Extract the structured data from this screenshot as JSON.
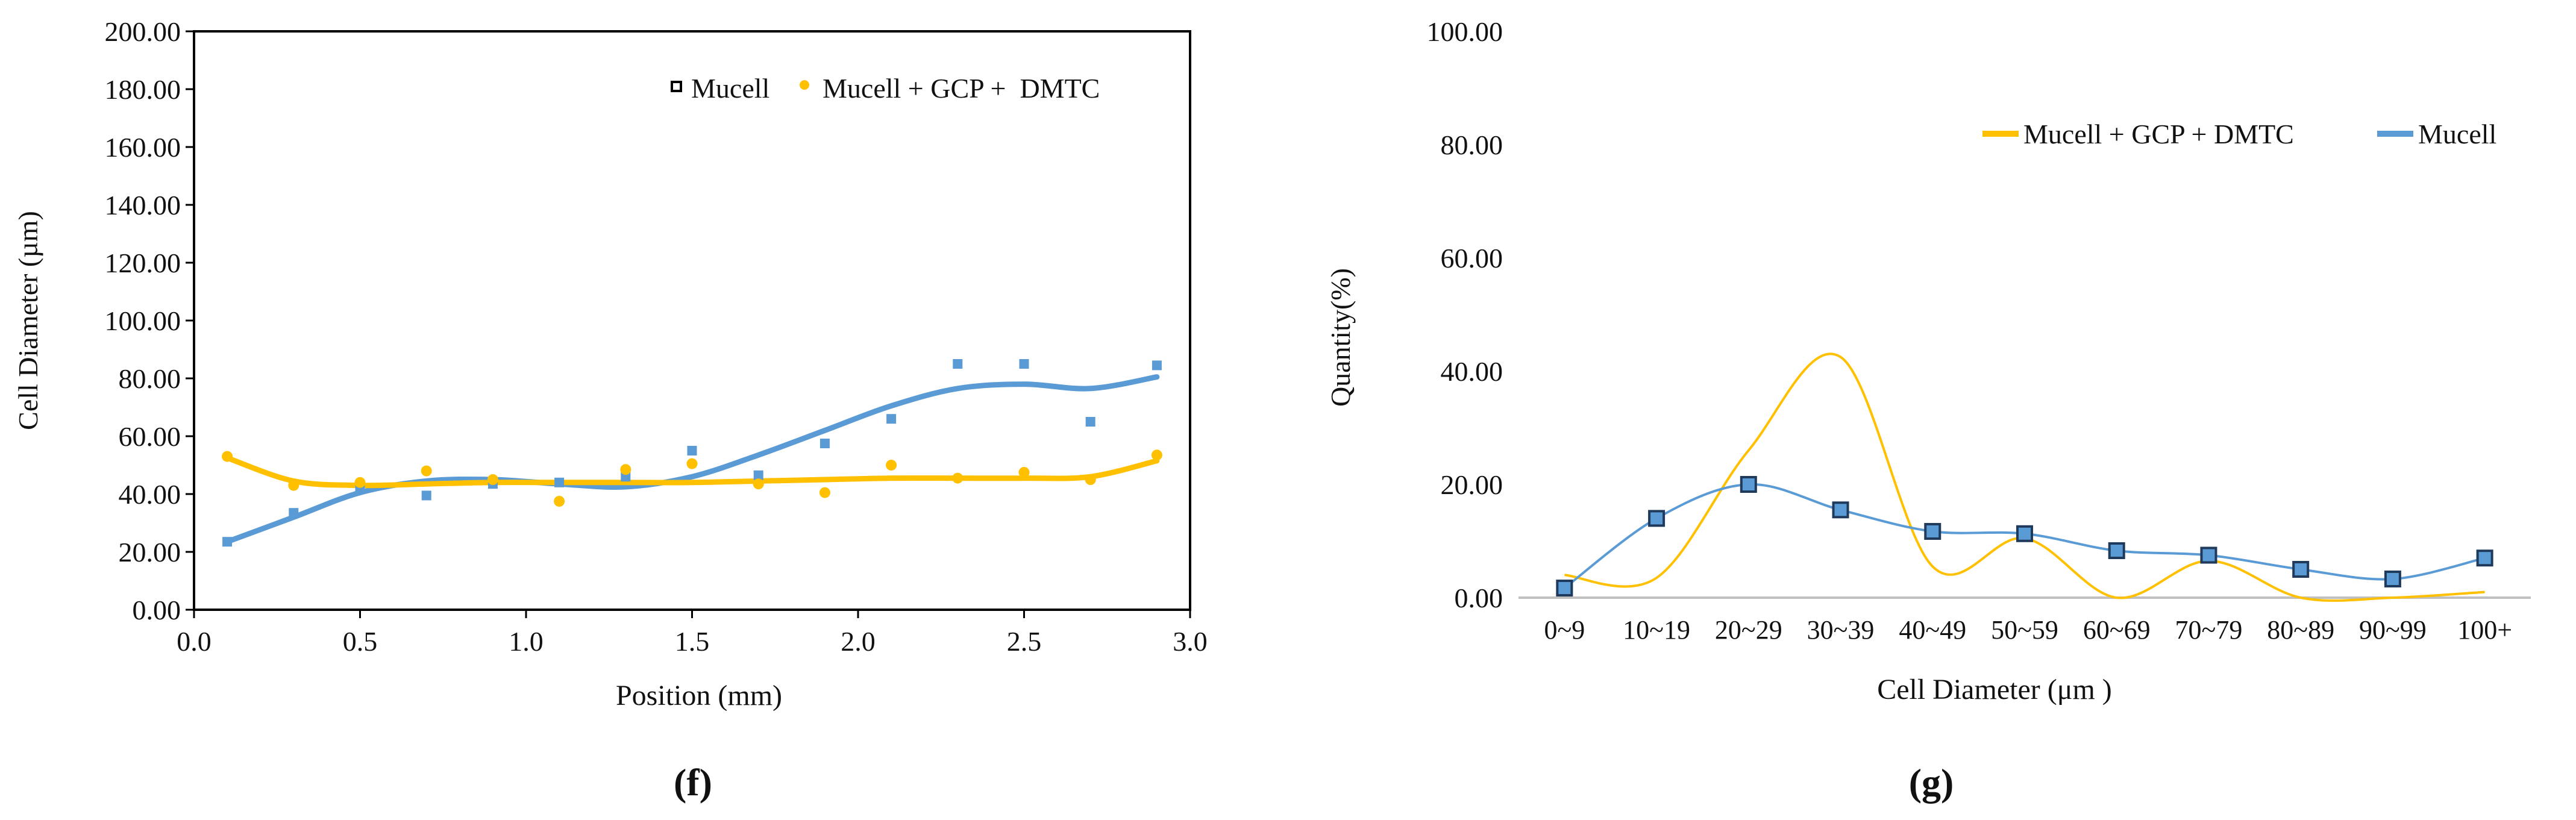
{
  "chart_data": [
    {
      "type": "scatter",
      "panel_label": "(f)",
      "xlabel": "Position (mm)",
      "ylabel": "Cell Diameter (µm)",
      "xlim": [
        0.0,
        3.0
      ],
      "ylim": [
        0.0,
        200.0
      ],
      "x_ticks": [
        "0.0",
        "0.5",
        "1.0",
        "1.5",
        "2.0",
        "2.5",
        "3.0"
      ],
      "y_ticks": [
        "0.00",
        "20.00",
        "40.00",
        "60.00",
        "80.00",
        "100.00",
        "120.00",
        "140.00",
        "160.00",
        "180.00",
        "200.00"
      ],
      "legend_position": "top-right",
      "series": [
        {
          "name": "Mucell",
          "color": "#5b9bd5",
          "marker": "square",
          "x": [
            0.1,
            0.3,
            0.5,
            0.7,
            0.9,
            1.1,
            1.3,
            1.5,
            1.7,
            1.9,
            2.1,
            2.3,
            2.5,
            2.7,
            2.9
          ],
          "y": [
            23.5,
            33.5,
            42.5,
            39.5,
            43.5,
            44.0,
            46.0,
            55.0,
            46.5,
            57.5,
            66.0,
            85.0,
            85.0,
            65.0,
            84.5
          ]
        },
        {
          "name": "Mucell + GCP +  DMTC",
          "color": "#ffc000",
          "marker": "circle",
          "x": [
            0.1,
            0.3,
            0.5,
            0.7,
            0.9,
            1.1,
            1.3,
            1.5,
            1.7,
            1.9,
            2.1,
            2.3,
            2.5,
            2.7,
            2.9
          ],
          "y": [
            53.0,
            43.0,
            44.0,
            48.0,
            45.0,
            37.5,
            48.5,
            50.5,
            43.5,
            40.5,
            50.0,
            45.5,
            47.5,
            45.0,
            53.5
          ]
        }
      ],
      "trendlines": [
        {
          "series": "Mucell",
          "color": "#5b9bd5",
          "x": [
            0.1,
            0.3,
            0.5,
            0.7,
            0.9,
            1.1,
            1.3,
            1.5,
            1.7,
            1.9,
            2.1,
            2.3,
            2.5,
            2.7,
            2.9
          ],
          "y": [
            23.5,
            32.0,
            40.5,
            44.5,
            45.0,
            43.5,
            42.5,
            46.0,
            53.5,
            62.0,
            70.5,
            76.5,
            78.0,
            76.5,
            80.5
          ]
        },
        {
          "series": "Mucell + GCP +  DMTC",
          "color": "#ffc000",
          "x": [
            0.1,
            0.3,
            0.5,
            0.7,
            0.9,
            1.1,
            1.3,
            1.5,
            1.7,
            1.9,
            2.1,
            2.3,
            2.5,
            2.7,
            2.9
          ],
          "y": [
            52.5,
            44.5,
            43.0,
            43.5,
            44.0,
            44.0,
            44.0,
            44.0,
            44.5,
            45.0,
            45.5,
            45.5,
            45.5,
            46.0,
            51.5
          ]
        }
      ]
    },
    {
      "type": "line",
      "panel_label": "(g)",
      "xlabel": "Cell Diameter (μm )",
      "ylabel": "Quantity(%)",
      "ylim": [
        0.0,
        100.0
      ],
      "y_ticks": [
        "0.00",
        "20.00",
        "40.00",
        "60.00",
        "80.00",
        "100.00"
      ],
      "categories": [
        "0~9",
        "10~19",
        "20~29",
        "30~39",
        "40~49",
        "50~59",
        "60~69",
        "70~79",
        "80~89",
        "90~99",
        "100+"
      ],
      "legend_position": "top-right",
      "series": [
        {
          "name": "Mucell + GCP + DMTC",
          "color": "#ffc000",
          "marker": "none",
          "values": [
            4.0,
            3.5,
            26.0,
            42.5,
            5.5,
            10.5,
            0.0,
            6.5,
            0.0,
            0.0,
            1.0
          ]
        },
        {
          "name": "Mucell",
          "color": "#5b9bd5",
          "marker": "square",
          "values": [
            1.7,
            14.0,
            20.0,
            15.5,
            11.7,
            11.3,
            8.3,
            7.5,
            5.0,
            3.3,
            7.0
          ]
        }
      ]
    }
  ]
}
